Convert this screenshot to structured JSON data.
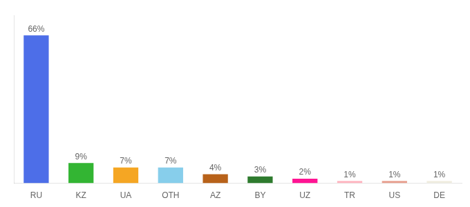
{
  "chart_data": {
    "type": "bar",
    "categories": [
      "RU",
      "KZ",
      "UA",
      "OTH",
      "AZ",
      "BY",
      "UZ",
      "TR",
      "US",
      "DE"
    ],
    "values": [
      66,
      9,
      7,
      7,
      4,
      3,
      2,
      1,
      1,
      1
    ],
    "value_labels": [
      "66%",
      "9%",
      "7%",
      "7%",
      "4%",
      "3%",
      "2%",
      "1%",
      "1%",
      "1%"
    ],
    "colors": [
      "#4d6ee8",
      "#33b533",
      "#f5a623",
      "#87ceeb",
      "#b8621a",
      "#2e7b2e",
      "#ff1493",
      "#ffb6c1",
      "#e8a090",
      "#f0ede0"
    ],
    "ylim": [
      0,
      75
    ],
    "grid": false,
    "tick_labels": "x",
    "data_labels": true
  }
}
